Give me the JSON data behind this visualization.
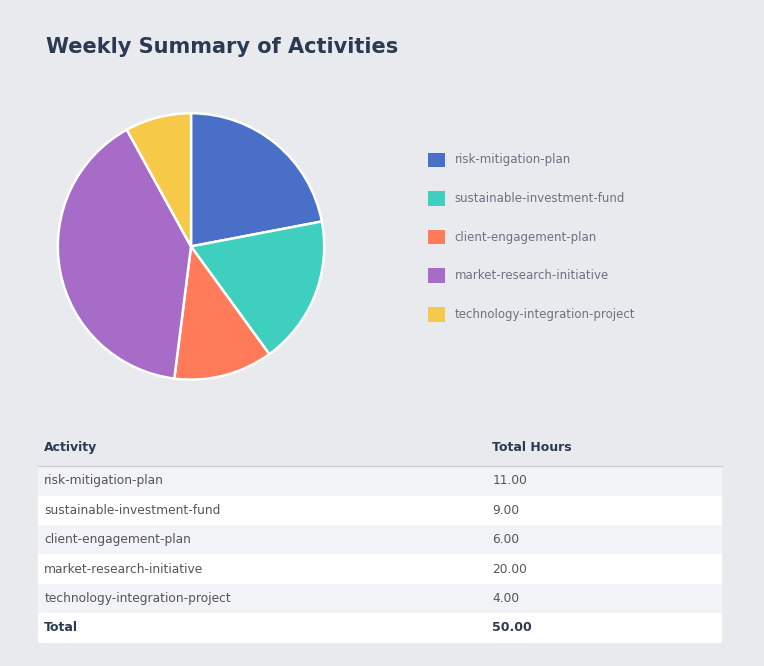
{
  "title": "Weekly Summary of Activities",
  "activities": [
    "risk-mitigation-plan",
    "sustainable-investment-fund",
    "client-engagement-plan",
    "market-research-initiative",
    "technology-integration-project"
  ],
  "hours": [
    11.0,
    9.0,
    6.0,
    20.0,
    4.0
  ],
  "total": 50.0,
  "colors": [
    "#4A6FC9",
    "#3ECFBF",
    "#FF7B5A",
    "#A66CC7",
    "#F7C948"
  ],
  "background_color": "#E8EAEE",
  "card_color": "#FFFFFF",
  "title_color": "#2B3A52",
  "table_header_color": "#2B3A52",
  "table_row_alt_color": "#F2F3F7",
  "table_row_color": "#FFFFFF",
  "table_line_color": "#C8CAD0",
  "text_color": "#555555",
  "col1_header": "Activity",
  "col2_header": "Total Hours",
  "legend_text_color": "#6B7280"
}
